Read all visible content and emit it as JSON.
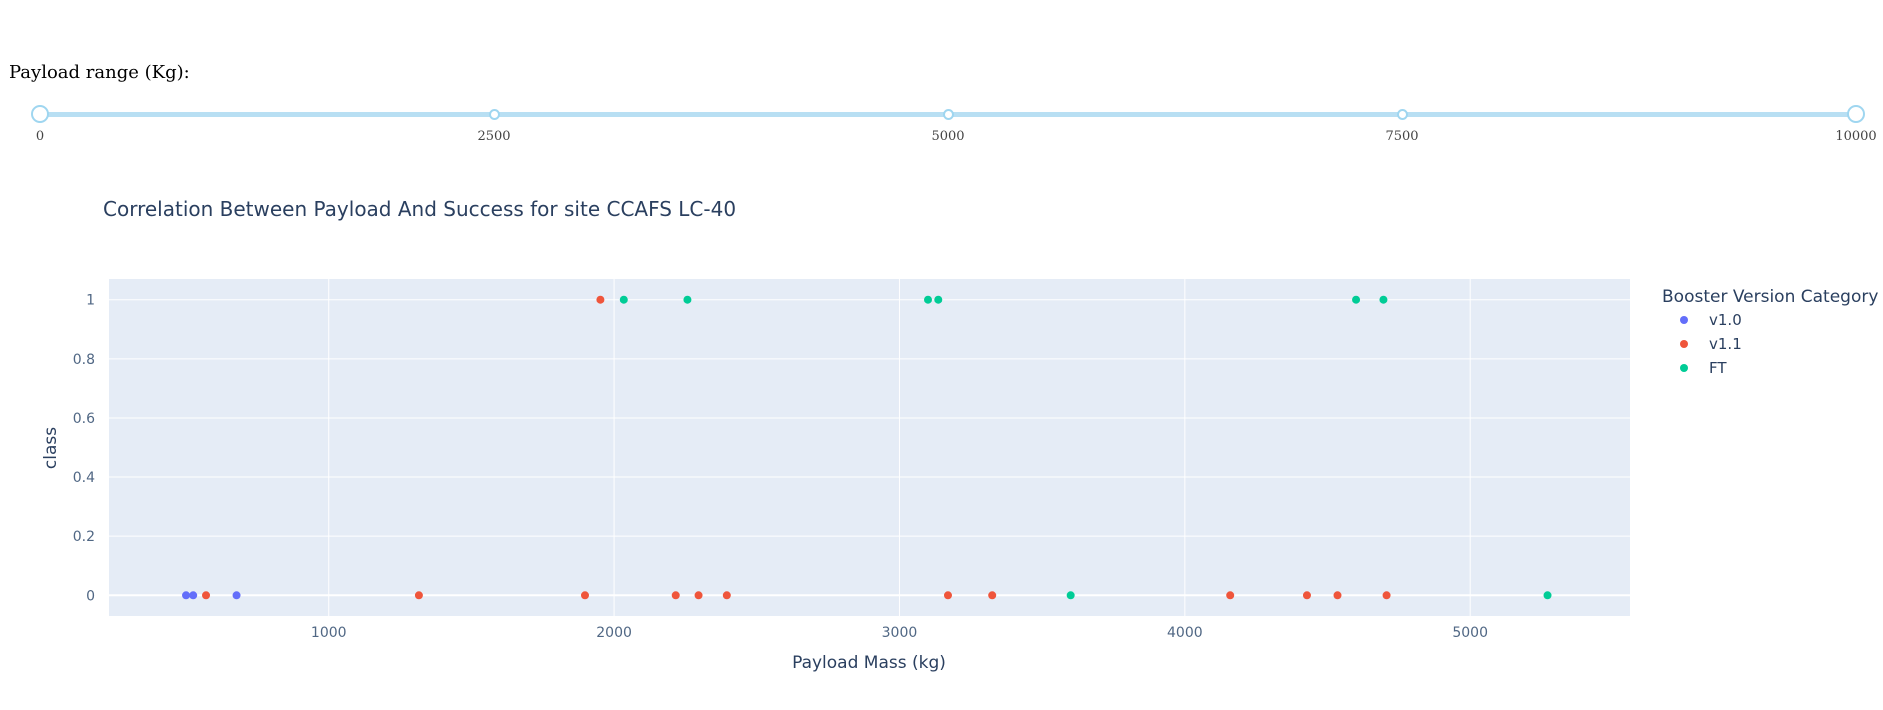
{
  "slider": {
    "label": "Payload range (Kg):",
    "min": 0,
    "max": 10000,
    "range": [
      0,
      10000
    ],
    "marks": [
      "0",
      "2500",
      "5000",
      "7500",
      "10000"
    ]
  },
  "colors": {
    "plot_bg": "#e5ecf6",
    "grid": "#ffffff",
    "text": "#2a3f5f",
    "tick": "#506784",
    "slider": "#b8dff3"
  },
  "chart_data": {
    "type": "scatter",
    "title": "Correlation Between Payload And Success for site CCAFS LC-40",
    "xlabel": "Payload Mass (kg)",
    "ylabel": "class",
    "xlim": [
      230,
      5560
    ],
    "ylim": [
      -0.07,
      1.07
    ],
    "xticks": [
      1000,
      2000,
      3000,
      4000,
      5000
    ],
    "yticks": [
      0,
      0.2,
      0.4,
      0.6,
      0.8,
      1
    ],
    "ytick_labels": [
      "0",
      "0.2",
      "0.4",
      "0.6",
      "0.8",
      "1"
    ],
    "grid": true,
    "legend_title": "Booster Version Category",
    "legend_position": "top-right",
    "series": [
      {
        "name": "v1.0",
        "color": "#636efa",
        "x": [
          500,
          525,
          677
        ],
        "y": [
          0,
          0,
          0
        ]
      },
      {
        "name": "v1.1",
        "color": "#ef553b",
        "x": [
          570,
          1316,
          1898,
          1952,
          2216,
          2296,
          2395,
          3170,
          3325,
          4159,
          4428,
          4535,
          4707
        ],
        "y": [
          0,
          0,
          0,
          1,
          0,
          0,
          0,
          0,
          0,
          0,
          0,
          0,
          0
        ]
      },
      {
        "name": "FT",
        "color": "#00cc96",
        "x": [
          2034,
          2257,
          3100,
          3136,
          3600,
          4600,
          4696,
          5271
        ],
        "y": [
          1,
          1,
          1,
          1,
          0,
          1,
          1,
          0
        ]
      }
    ]
  }
}
